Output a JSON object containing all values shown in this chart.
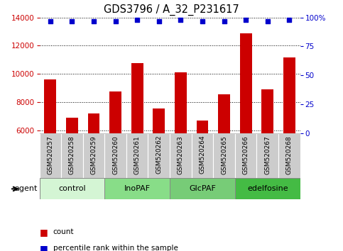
{
  "title": "GDS3796 / A_32_P231617",
  "samples": [
    "GSM520257",
    "GSM520258",
    "GSM520259",
    "GSM520260",
    "GSM520261",
    "GSM520262",
    "GSM520263",
    "GSM520264",
    "GSM520265",
    "GSM520266",
    "GSM520267",
    "GSM520268"
  ],
  "counts": [
    9600,
    6900,
    7200,
    8750,
    10750,
    7550,
    10100,
    6700,
    8550,
    12900,
    8900,
    11150
  ],
  "percentiles": [
    97,
    97,
    97,
    97,
    98,
    97,
    98,
    97,
    97,
    98,
    97,
    98
  ],
  "groups": [
    {
      "label": "control",
      "start": 0,
      "end": 3,
      "color": "#d4f5d4"
    },
    {
      "label": "InoPAF",
      "start": 3,
      "end": 6,
      "color": "#88dd88"
    },
    {
      "label": "GlcPAF",
      "start": 6,
      "end": 9,
      "color": "#77cc77"
    },
    {
      "label": "edelfosine",
      "start": 9,
      "end": 12,
      "color": "#44bb44"
    }
  ],
  "bar_color": "#cc0000",
  "dot_color": "#0000cc",
  "bar_bottom": 5800,
  "ylim_left": [
    5800,
    14000
  ],
  "ylim_right": [
    0,
    100
  ],
  "yticks_left": [
    6000,
    8000,
    10000,
    12000,
    14000
  ],
  "yticks_right": [
    0,
    25,
    50,
    75,
    100
  ],
  "right_ytick_labels": [
    "0",
    "25",
    "50",
    "75",
    "100%"
  ],
  "left_color": "#cc0000",
  "right_color": "#0000cc",
  "xtick_bg_color": "#cccccc",
  "plot_bg_color": "#ffffff",
  "grid_color": "#000000",
  "agent_label": "agent"
}
